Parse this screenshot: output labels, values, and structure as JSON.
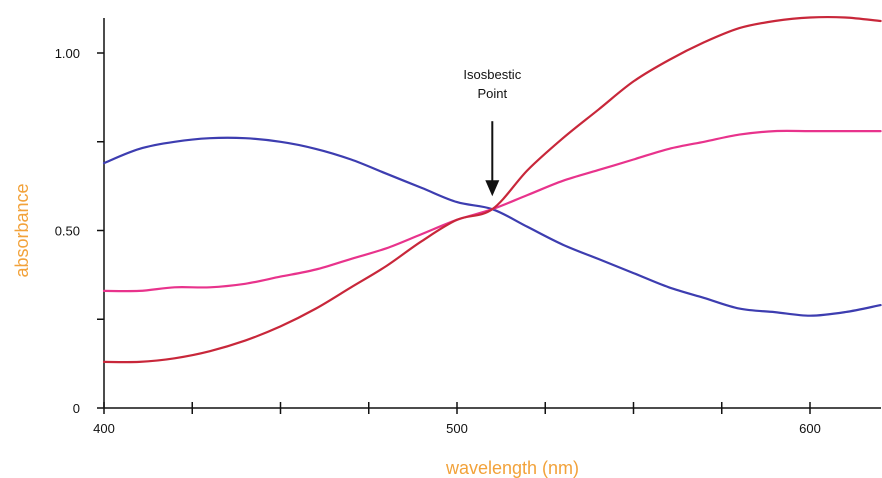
{
  "chart_data": {
    "type": "line",
    "title": "",
    "xlabel": "wavelength (nm)",
    "ylabel": "absorbance",
    "xlim": [
      400,
      620
    ],
    "ylim": [
      0,
      1.1
    ],
    "x_ticks": [
      400,
      425,
      450,
      475,
      500,
      525,
      550,
      575,
      600
    ],
    "x_tick_labels": [
      {
        "value": 400,
        "label": "400"
      },
      {
        "value": 500,
        "label": "500"
      },
      {
        "value": 600,
        "label": "600"
      }
    ],
    "y_ticks": [
      0,
      0.25,
      0.5,
      0.75,
      1.0
    ],
    "y_tick_labels": [
      {
        "value": 0,
        "label": "0"
      },
      {
        "value": 0.5,
        "label": "0.50"
      },
      {
        "value": 1.0,
        "label": "1.00"
      }
    ],
    "grid": false,
    "series": [
      {
        "color": "#3d3db0",
        "points": [
          [
            400,
            0.69
          ],
          [
            410,
            0.73
          ],
          [
            420,
            0.75
          ],
          [
            430,
            0.76
          ],
          [
            440,
            0.76
          ],
          [
            450,
            0.75
          ],
          [
            460,
            0.73
          ],
          [
            470,
            0.7
          ],
          [
            480,
            0.66
          ],
          [
            490,
            0.62
          ],
          [
            500,
            0.58
          ],
          [
            510,
            0.56
          ],
          [
            520,
            0.51
          ],
          [
            530,
            0.46
          ],
          [
            540,
            0.42
          ],
          [
            550,
            0.38
          ],
          [
            560,
            0.34
          ],
          [
            570,
            0.31
          ],
          [
            580,
            0.28
          ],
          [
            590,
            0.27
          ],
          [
            600,
            0.26
          ],
          [
            610,
            0.27
          ],
          [
            620,
            0.29
          ]
        ]
      },
      {
        "color": "#e8338c",
        "points": [
          [
            400,
            0.33
          ],
          [
            410,
            0.33
          ],
          [
            420,
            0.34
          ],
          [
            430,
            0.34
          ],
          [
            440,
            0.35
          ],
          [
            450,
            0.37
          ],
          [
            460,
            0.39
          ],
          [
            470,
            0.42
          ],
          [
            480,
            0.45
          ],
          [
            490,
            0.49
          ],
          [
            500,
            0.53
          ],
          [
            510,
            0.56
          ],
          [
            520,
            0.6
          ],
          [
            530,
            0.64
          ],
          [
            540,
            0.67
          ],
          [
            550,
            0.7
          ],
          [
            560,
            0.73
          ],
          [
            570,
            0.75
          ],
          [
            580,
            0.77
          ],
          [
            590,
            0.78
          ],
          [
            600,
            0.78
          ],
          [
            610,
            0.78
          ],
          [
            620,
            0.78
          ]
        ]
      },
      {
        "color": "#c8273a",
        "points": [
          [
            400,
            0.13
          ],
          [
            410,
            0.13
          ],
          [
            420,
            0.14
          ],
          [
            430,
            0.16
          ],
          [
            440,
            0.19
          ],
          [
            450,
            0.23
          ],
          [
            460,
            0.28
          ],
          [
            470,
            0.34
          ],
          [
            480,
            0.4
          ],
          [
            490,
            0.47
          ],
          [
            500,
            0.53
          ],
          [
            510,
            0.56
          ],
          [
            520,
            0.67
          ],
          [
            530,
            0.76
          ],
          [
            540,
            0.84
          ],
          [
            550,
            0.92
          ],
          [
            560,
            0.98
          ],
          [
            570,
            1.03
          ],
          [
            580,
            1.07
          ],
          [
            590,
            1.09
          ],
          [
            600,
            1.1
          ],
          [
            610,
            1.1
          ],
          [
            620,
            1.09
          ]
        ]
      }
    ],
    "annotations": [
      {
        "text_lines": [
          "Isosbestic",
          "Point"
        ],
        "x": 510,
        "y": 0.56,
        "arrow": "down"
      }
    ]
  }
}
